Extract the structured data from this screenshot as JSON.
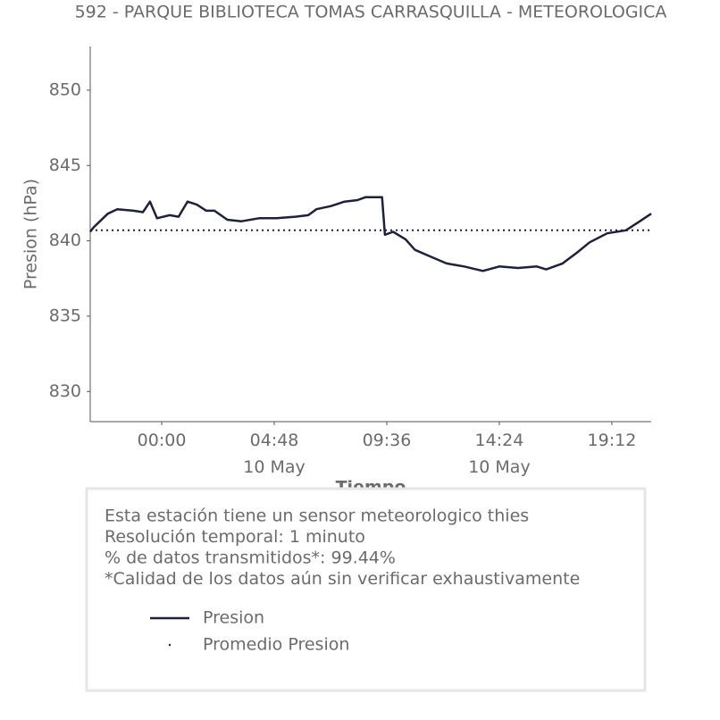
{
  "chart_data": {
    "type": "line",
    "title": "592 - PARQUE BIBLIOTECA TOMAS CARRASQUILLA - METEOROLOGICA",
    "x_label": "Tiempo",
    "y_label": "Presion (hPa)",
    "x": [
      -3.05,
      -2.9,
      -2.3,
      -1.9,
      -1.2,
      -0.8,
      -0.5,
      -0.2,
      0.34,
      0.72,
      1.1,
      1.5,
      1.9,
      2.25,
      2.8,
      3.4,
      4.15,
      4.9,
      5.7,
      6.25,
      6.6,
      7.2,
      7.8,
      8.35,
      8.7,
      9.4,
      9.52,
      9.87,
      10.4,
      10.8,
      11.4,
      12.15,
      12.9,
      13.7,
      14.4,
      15.2,
      16.0,
      16.4,
      17.1,
      17.7,
      18.25,
      19.0,
      19.8,
      20.3,
      20.88
    ],
    "series": [
      {
        "name": "Presion",
        "color": "#1e2040",
        "values": [
          840.6,
          840.9,
          841.8,
          842.1,
          842.0,
          841.9,
          842.6,
          841.5,
          841.7,
          841.6,
          842.6,
          842.4,
          842.0,
          842.0,
          841.4,
          841.3,
          841.5,
          841.5,
          841.6,
          841.7,
          842.1,
          842.3,
          842.6,
          842.7,
          842.9,
          842.9,
          840.4,
          840.6,
          840.1,
          839.4,
          839.0,
          838.5,
          838.3,
          838.0,
          838.3,
          838.2,
          838.3,
          838.1,
          838.5,
          839.2,
          839.9,
          840.5,
          840.7,
          841.2,
          841.8
        ]
      }
    ],
    "reference_lines": [
      {
        "name": "Promedio Presion",
        "value": 840.7,
        "color": "#1e2040"
      }
    ],
    "xlim": [
      -3.05,
      20.88
    ],
    "ylim": [
      828,
      852.9
    ],
    "xticks": [
      {
        "value": 0,
        "label": "00:00"
      },
      {
        "value": 4.8,
        "label": "04:48\n10 May"
      },
      {
        "value": 9.6,
        "label": "09:36"
      },
      {
        "value": 14.4,
        "label": "14:24\n10 May"
      },
      {
        "value": 19.2,
        "label": "19:12"
      }
    ],
    "yticks": [
      830,
      835,
      840,
      845,
      850
    ],
    "notes": [
      "Esta estación tiene un sensor meteorologico thies",
      "Resolución temporal: 1 minuto",
      "% de datos transmitidos*: 99.44%",
      "*Calidad de los datos aún sin verificar exhaustivamente"
    ]
  }
}
